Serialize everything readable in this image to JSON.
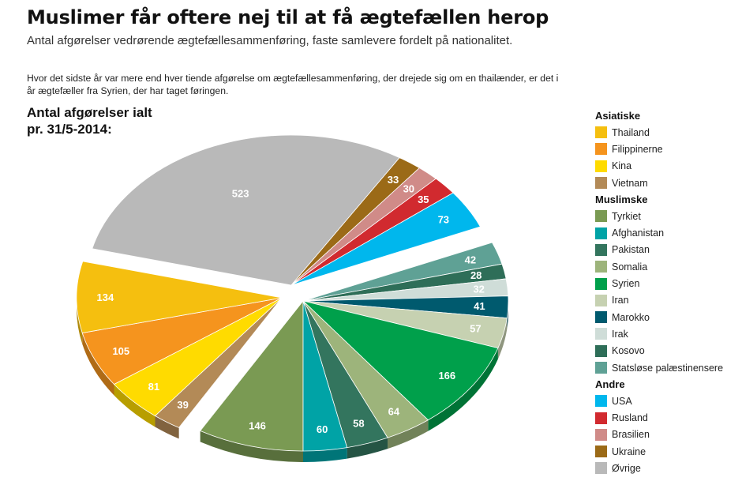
{
  "header": {
    "title": "Muslimer får oftere nej til at få ægtefællen herop",
    "subtitle": "Antal afgørelser vedrørende ægtefællesammenføring, faste samlevere fordelt på nationalitet.",
    "note": "Hvor det sidste år var mere end hver tiende afgørelse om ægtefællesammenføring, der drejede sig om en thailænder, er det i år ægtefæller fra Syrien, der har taget føringen.",
    "total_label_line1": "Antal afgørelser ialt",
    "total_label_line2": "pr. 31/5-2014:"
  },
  "chart_data": {
    "type": "pie",
    "groups": [
      {
        "name": "Asiatiske",
        "slices": [
          {
            "name": "Thailand",
            "value": 134,
            "color": "#f5bf0f"
          },
          {
            "name": "Filippinerne",
            "value": 105,
            "color": "#f5941e"
          },
          {
            "name": "Kina",
            "value": 81,
            "color": "#ffdb00"
          },
          {
            "name": "Vietnam",
            "value": 39,
            "color": "#b38a57"
          }
        ]
      },
      {
        "name": "Muslimske",
        "slices": [
          {
            "name": "Tyrkiet",
            "value": 146,
            "color": "#7a9a53"
          },
          {
            "name": "Afghanistan",
            "value": 60,
            "color": "#00a3a6"
          },
          {
            "name": "Pakistan",
            "value": 58,
            "color": "#33755e"
          },
          {
            "name": "Somalia",
            "value": 64,
            "color": "#9db47b"
          },
          {
            "name": "Syrien",
            "value": 166,
            "color": "#00a04b"
          },
          {
            "name": "Iran",
            "value": 57,
            "color": "#c6d1b1"
          },
          {
            "name": "Marokko",
            "value": 41,
            "color": "#005a6e"
          },
          {
            "name": "Irak",
            "value": 32,
            "color": "#cfddd8"
          },
          {
            "name": "Kosovo",
            "value": 28,
            "color": "#2e6e58"
          },
          {
            "name": "Statsløse palæstinensere",
            "value": 42,
            "color": "#5fa195"
          }
        ]
      },
      {
        "name": "Andre",
        "slices": [
          {
            "name": "USA",
            "value": 73,
            "color": "#00b7ed"
          },
          {
            "name": "Rusland",
            "value": 35,
            "color": "#d12a2f"
          },
          {
            "name": "Brasilien",
            "value": 30,
            "color": "#d08b88"
          },
          {
            "name": "Ukraine",
            "value": 33,
            "color": "#9b6a17"
          },
          {
            "name": "Øvrige",
            "value": 523,
            "color": "#b9b9b9"
          }
        ]
      }
    ]
  }
}
